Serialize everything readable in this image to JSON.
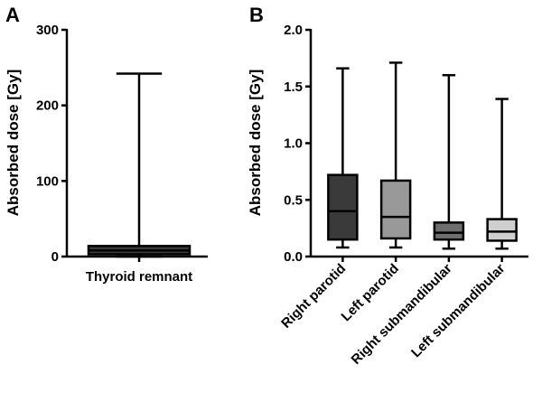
{
  "chart_data": [
    {
      "panel_label": "A",
      "type": "boxplot",
      "title": "",
      "ylabel": "Absorbed dose [Gy]",
      "ylim": [
        0,
        300
      ],
      "yticks": [
        "0",
        "100",
        "200",
        "300"
      ],
      "categories": [
        "Thyroid remnant"
      ],
      "boxes": [
        {
          "min": 0,
          "q1": 3,
          "median": 8,
          "q3": 14,
          "max": 242,
          "fill": "#3a3a3a"
        }
      ]
    },
    {
      "panel_label": "B",
      "type": "boxplot",
      "title": "",
      "ylabel": "Absorbed dose [Gy]",
      "ylim": [
        0,
        2.0
      ],
      "yticks": [
        "0.0",
        "0.5",
        "1.0",
        "1.5",
        "2.0"
      ],
      "categories": [
        "Right parotid",
        "Left parotid",
        "Right submandibular",
        "Left submandibular"
      ],
      "boxes": [
        {
          "min": 0.08,
          "q1": 0.15,
          "median": 0.4,
          "q3": 0.72,
          "max": 1.66,
          "fill": "#3a3a3a"
        },
        {
          "min": 0.08,
          "q1": 0.16,
          "median": 0.35,
          "q3": 0.67,
          "max": 1.71,
          "fill": "#999999"
        },
        {
          "min": 0.07,
          "q1": 0.15,
          "median": 0.21,
          "q3": 0.3,
          "max": 1.6,
          "fill": "#6e6e6e"
        },
        {
          "min": 0.07,
          "q1": 0.14,
          "median": 0.22,
          "q3": 0.33,
          "max": 1.39,
          "fill": "#cfcfcf"
        }
      ]
    }
  ]
}
